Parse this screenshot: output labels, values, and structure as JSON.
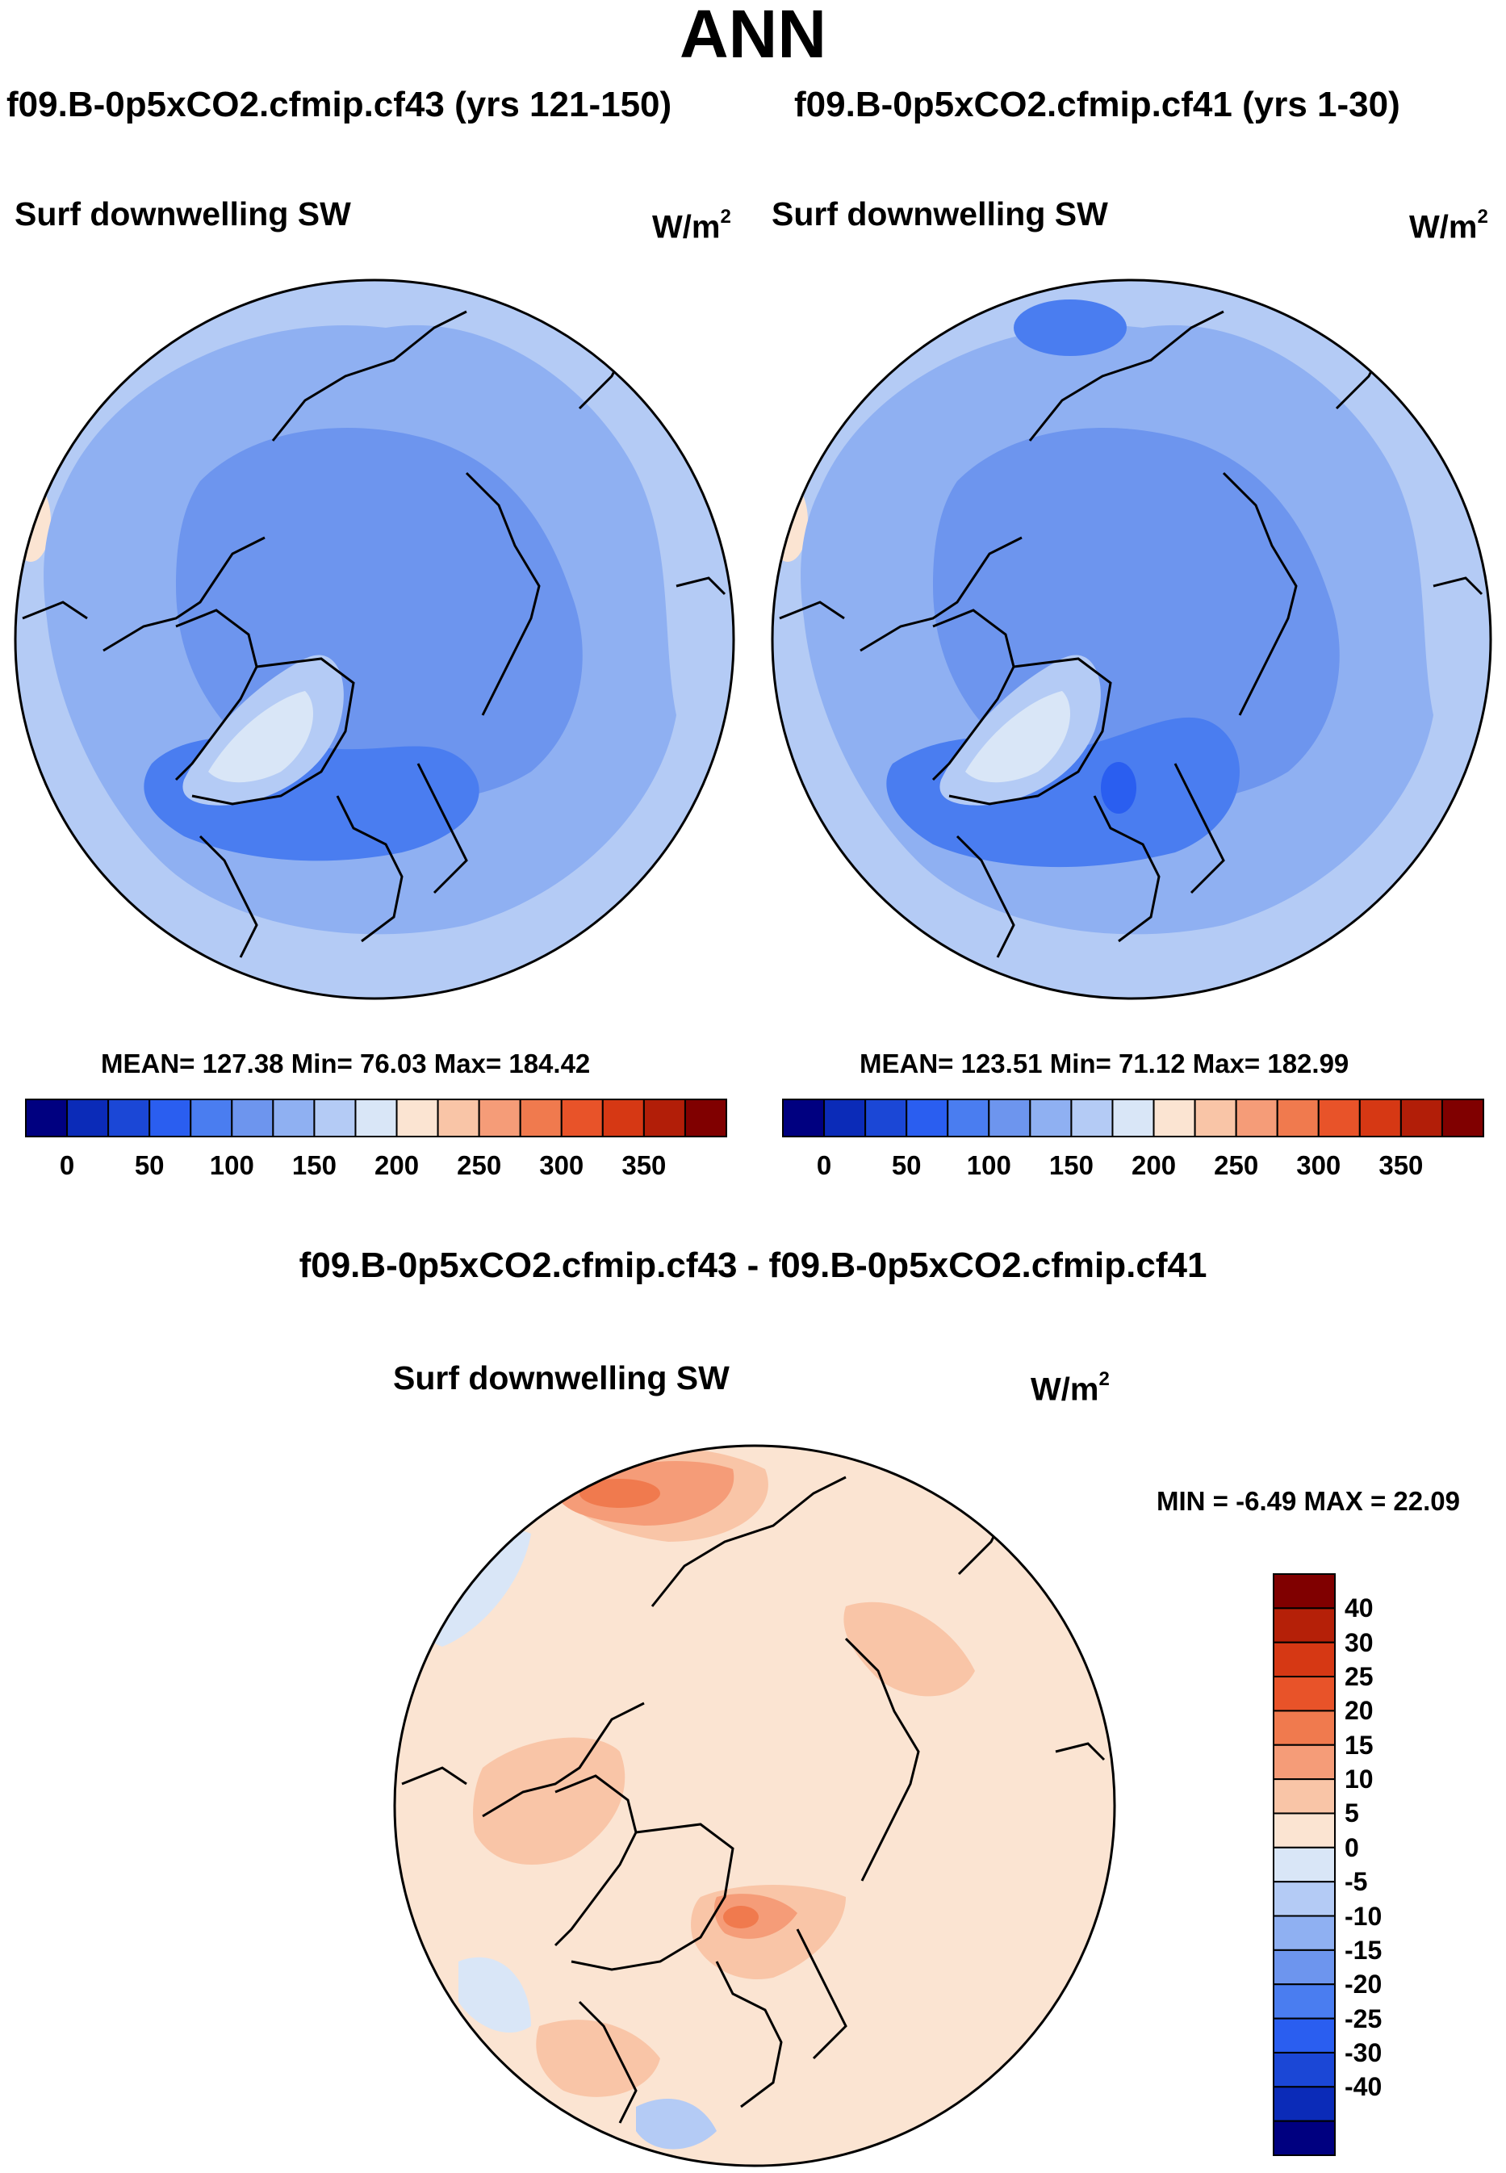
{
  "title": "ANN",
  "panels": [
    {
      "id": "left",
      "case_title": "f09.B-0p5xCO2.cfmip.cf43 (yrs 121-150)",
      "variable": "Surf downwelling SW",
      "units_base": "W/m",
      "units_exp": "2",
      "stats": "MEAN= 127.38  Min=  76.03  Max= 184.42",
      "colorbar": {
        "colors": [
          "#000080",
          "#0b2bb8",
          "#1b47d6",
          "#2a5ef0",
          "#4a7df0",
          "#6d95ee",
          "#8fb0f2",
          "#b4cbf5",
          "#d9e6f7",
          "#fbe4d2",
          "#f9c5a7",
          "#f59c78",
          "#f07a4e",
          "#e85329",
          "#d63814",
          "#b21e08",
          "#800000"
        ],
        "ticks": [
          "0",
          "50",
          "100",
          "150",
          "200",
          "250",
          "300",
          "350"
        ]
      }
    },
    {
      "id": "right",
      "case_title": "f09.B-0p5xCO2.cfmip.cf41 (yrs 1-30)",
      "variable": "Surf downwelling SW",
      "units_base": "W/m",
      "units_exp": "2",
      "stats": "MEAN= 123.51  Min=  71.12  Max= 182.99",
      "colorbar": {
        "colors": [
          "#000080",
          "#0b2bb8",
          "#1b47d6",
          "#2a5ef0",
          "#4a7df0",
          "#6d95ee",
          "#8fb0f2",
          "#b4cbf5",
          "#d9e6f7",
          "#fbe4d2",
          "#f9c5a7",
          "#f59c78",
          "#f07a4e",
          "#e85329",
          "#d63814",
          "#b21e08",
          "#800000"
        ],
        "ticks": [
          "0",
          "50",
          "100",
          "150",
          "200",
          "250",
          "300",
          "350"
        ]
      }
    }
  ],
  "difference": {
    "title": "f09.B-0p5xCO2.cfmip.cf43 - f09.B-0p5xCO2.cfmip.cf41",
    "variable": "Surf downwelling SW",
    "units_base": "W/m",
    "units_exp": "2",
    "stats": "MIN =  -6.49 MAX =  22.09",
    "colorbar": {
      "colors": [
        "#800000",
        "#b52008",
        "#d63814",
        "#e85329",
        "#f07a4e",
        "#f59c78",
        "#f9c5a7",
        "#fbe4d2",
        "#d9e6f7",
        "#b4cbf5",
        "#8fb0f2",
        "#6d95ee",
        "#4a7df0",
        "#2a5ef0",
        "#1b47d6",
        "#0b2bb8",
        "#000080"
      ],
      "ticks": [
        "40",
        "30",
        "25",
        "20",
        "15",
        "10",
        "5",
        "0",
        "-5",
        "-10",
        "-15",
        "-20",
        "-25",
        "-30",
        "-40"
      ]
    }
  },
  "map_colors": {
    "outer": "#b4cbf5",
    "mid": "#8fb0f2",
    "arctic": "#6d95ee",
    "atlantic": "#4a7df0",
    "greenland": "#d9e6f7",
    "warm_edge": "#fbe4d2",
    "diff_base": "#fbe4d2",
    "diff_pos": "#f9c5a7",
    "diff_pos2": "#f59c78",
    "diff_pos3": "#f07a4e",
    "diff_neg": "#d9e6f7",
    "diff_neg2": "#b4cbf5"
  }
}
